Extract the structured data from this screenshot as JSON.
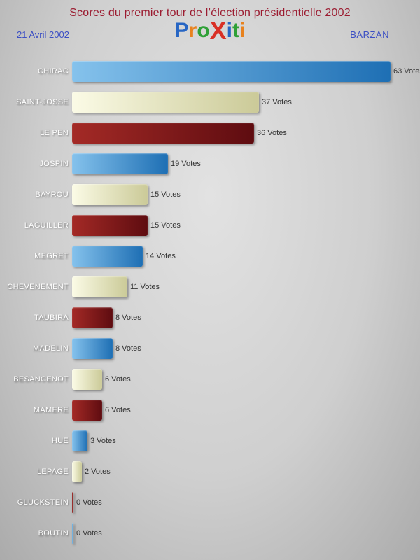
{
  "header": {
    "title": "Scores du premier tour de l’élection présidentielle 2002",
    "date": "21 Avril 2002",
    "location": "BARZAN",
    "logo": {
      "name": "proxiti-logo",
      "letters": [
        {
          "char": "P",
          "color": "#2766c4",
          "big": false
        },
        {
          "char": "r",
          "color": "#e8821e",
          "big": false
        },
        {
          "char": "o",
          "color": "#2fa037",
          "big": false
        },
        {
          "char": "X",
          "color": "#d93025",
          "big": true
        },
        {
          "char": "i",
          "color": "#2766c4",
          "big": false
        },
        {
          "char": "t",
          "color": "#2fa037",
          "big": false
        },
        {
          "char": "i",
          "color": "#e8821e",
          "big": false
        }
      ]
    },
    "title_color": "#9b1b30",
    "subheader_color": "#3c4fc4"
  },
  "chart_data": {
    "type": "bar",
    "orientation": "horizontal",
    "title": "Scores du premier tour de l’élection présidentielle 2002",
    "categories": [
      "CHIRAC",
      "SAINT-JOSSE",
      "LE PEN",
      "JOSPIN",
      "BAYROU",
      "LAGUILLER",
      "MEGRET",
      "CHEVENEMENT",
      "TAUBIRA",
      "MADELIN",
      "BESANCENOT",
      "MAMERE",
      "HUE",
      "LEPAGE",
      "GLUCKSTEIN",
      "BOUTIN"
    ],
    "values": [
      63,
      37,
      36,
      19,
      15,
      15,
      14,
      11,
      8,
      8,
      6,
      6,
      3,
      2,
      0,
      0
    ],
    "value_suffix": " Votes",
    "xlim": [
      0,
      63
    ],
    "grid": false,
    "legend": false,
    "color_sequence": [
      "blue",
      "cream",
      "darkred"
    ],
    "palette": {
      "blue": {
        "start": "#85c2ec",
        "end": "#1e6fb4"
      },
      "cream": {
        "start": "#fbfbe6",
        "end": "#cbca98"
      },
      "darkred": {
        "start": "#a42a26",
        "end": "#5e0c10"
      }
    }
  }
}
